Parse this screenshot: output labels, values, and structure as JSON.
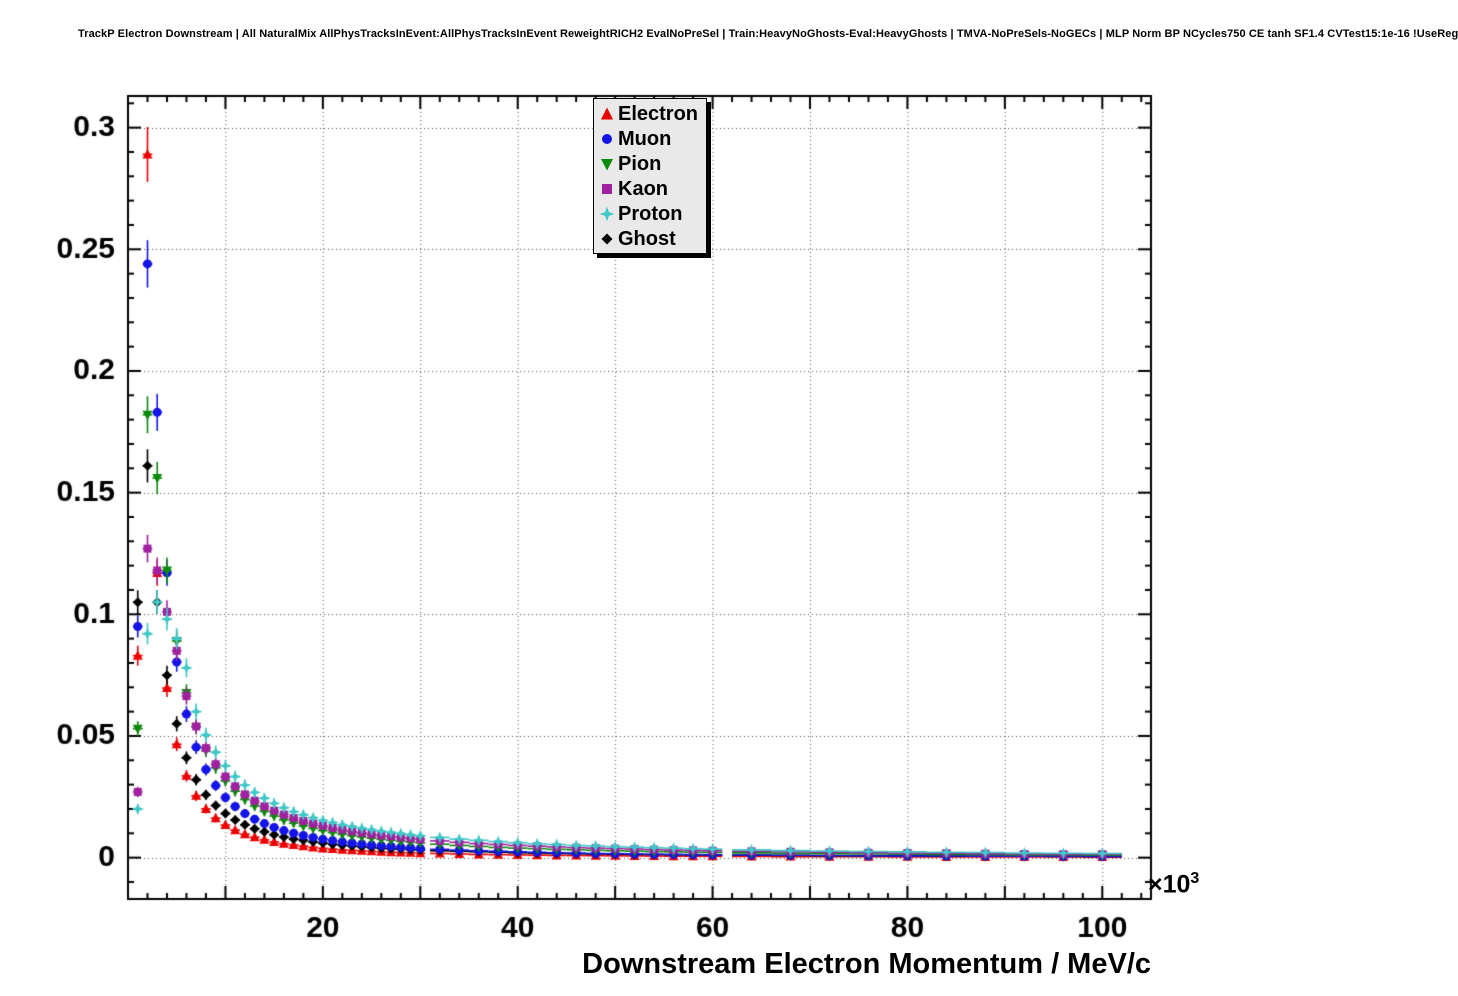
{
  "chart_data": {
    "type": "scatter",
    "title": "TrackP Electron Downstream | All NaturalMix AllPhysTracksInEvent:AllPhysTracksInEvent ReweightRICH2 EvalNoPreSel | Train:HeavyNoGhosts-Eval:HeavyGhosts | TMVA-NoPreSels-NoGECs | MLP Norm BP NCycles750 CE tanh SF1.4 CVTest15:1e-16 !UseReg",
    "xlabel": "Downstream Electron Momentum / MeV/c",
    "ylabel": "",
    "x_multiplier": "×10",
    "x_multiplier_exp": "3",
    "xlim": [
      0,
      105
    ],
    "ylim": [
      -0.017,
      0.313
    ],
    "xticks": {
      "major_step": 10,
      "minor_step": 2,
      "label_values": [
        20,
        40,
        60,
        80,
        100
      ],
      "labels": [
        "20",
        "40",
        "60",
        "80",
        "100"
      ]
    },
    "yticks": {
      "major_step": 0.05,
      "minor_step": 0.01,
      "label_values": [
        0,
        0.05,
        0.1,
        0.15,
        0.2,
        0.25,
        0.3
      ],
      "labels": [
        "0",
        "0.05",
        "0.1",
        "0.15",
        "0.2",
        "0.25",
        "0.3"
      ]
    },
    "grid": {
      "on": true,
      "style": "dotted"
    },
    "legend_position": "top-center",
    "error_model": {
      "fraction": 0.035,
      "floor": 0.0012
    },
    "x": [
      1,
      2,
      3,
      4,
      5,
      6,
      7,
      8,
      9,
      10,
      11,
      12,
      13,
      14,
      15,
      16,
      17,
      18,
      19,
      20,
      21,
      22,
      23,
      24,
      25,
      26,
      27,
      28,
      29,
      30,
      32,
      34,
      36,
      38,
      40,
      42,
      44,
      46,
      48,
      50,
      52,
      54,
      56,
      58,
      60,
      64,
      68,
      72,
      76,
      80,
      84,
      88,
      92,
      96,
      100
    ],
    "series": [
      {
        "name": "Electron",
        "color": "#ee0000",
        "marker": "triangle-up",
        "values": [
          0.083,
          0.289,
          0.117,
          0.0697,
          0.0466,
          0.0336,
          0.0254,
          0.02,
          0.0162,
          0.0134,
          0.0113,
          0.0096,
          0.0084,
          0.0073,
          0.0064,
          0.0057,
          0.0052,
          0.0047,
          0.0042,
          0.0038,
          0.0035,
          0.0032,
          0.003,
          0.0028,
          0.0026,
          0.0024,
          0.0022,
          0.0021,
          0.002,
          0.0018,
          0.0017,
          0.0015,
          0.0013,
          0.0012,
          0.0011,
          0.001,
          0.0009,
          0.00086,
          0.0008,
          0.00074,
          0.00069,
          0.00064,
          0.0006,
          0.00057,
          0.00053,
          0.00048,
          0.00043,
          0.00039,
          0.00035,
          0.00032,
          0.00029,
          0.00027,
          0.00025,
          0.00023,
          0.00021
        ]
      },
      {
        "name": "Muon",
        "color": "#1414e8",
        "marker": "circle",
        "values": [
          0.095,
          0.244,
          0.183,
          0.117,
          0.0804,
          0.059,
          0.0454,
          0.0362,
          0.0296,
          0.0247,
          0.021,
          0.0181,
          0.0158,
          0.014,
          0.0124,
          0.0111,
          0.01,
          0.0091,
          0.0083,
          0.0076,
          0.007,
          0.0065,
          0.006,
          0.0056,
          0.0052,
          0.0049,
          0.0046,
          0.0043,
          0.0041,
          0.0038,
          0.0034,
          0.0031,
          0.0028,
          0.0026,
          0.0024,
          0.0022,
          0.002,
          0.0019,
          0.0017,
          0.0016,
          0.0015,
          0.0014,
          0.00133,
          0.00125,
          0.00118,
          0.00106,
          0.00096,
          0.00087,
          0.00079,
          0.00073,
          0.00067,
          0.00062,
          0.00058,
          0.00054,
          0.0005
        ]
      },
      {
        "name": "Pion",
        "color": "#0c8a0c",
        "marker": "triangle-down",
        "values": [
          0.053,
          0.182,
          0.156,
          0.118,
          0.089,
          0.0677,
          0.0537,
          0.044,
          0.0369,
          0.0315,
          0.0273,
          0.0239,
          0.0212,
          0.019,
          0.0171,
          0.0155,
          0.0142,
          0.013,
          0.012,
          0.0111,
          0.0103,
          0.0096,
          0.009,
          0.0085,
          0.008,
          0.0075,
          0.0071,
          0.0067,
          0.0064,
          0.0061,
          0.0055,
          0.005,
          0.0046,
          0.0042,
          0.0039,
          0.0037,
          0.0034,
          0.0032,
          0.003,
          0.0028,
          0.00265,
          0.00251,
          0.00237,
          0.00225,
          0.00214,
          0.00194,
          0.00177,
          0.00163,
          0.0015,
          0.00139,
          0.00129,
          0.00121,
          0.00113,
          0.00106,
          0.001
        ]
      },
      {
        "name": "Kaon",
        "color": "#a020a0",
        "marker": "square",
        "values": [
          0.027,
          0.127,
          0.118,
          0.101,
          0.085,
          0.0664,
          0.0539,
          0.045,
          0.0384,
          0.0333,
          0.0293,
          0.026,
          0.0234,
          0.0211,
          0.0193,
          0.0177,
          0.0163,
          0.0151,
          0.014,
          0.0131,
          0.0122,
          0.0115,
          0.0108,
          0.0102,
          0.0096,
          0.0091,
          0.0087,
          0.0083,
          0.0079,
          0.0075,
          0.0069,
          0.0063,
          0.0058,
          0.0054,
          0.005,
          0.0047,
          0.0044,
          0.0041,
          0.0039,
          0.0037,
          0.0035,
          0.0033,
          0.0031,
          0.003,
          0.0028,
          0.0026,
          0.0024,
          0.0022,
          0.002,
          0.0019,
          0.0018,
          0.0016,
          0.0015,
          0.0014,
          0.0014
        ]
      },
      {
        "name": "Proton",
        "color": "#3fc8c8",
        "marker": "star",
        "values": [
          0.02,
          0.092,
          0.105,
          0.098,
          0.09,
          0.078,
          0.06,
          0.0504,
          0.0433,
          0.0377,
          0.0333,
          0.0298,
          0.0268,
          0.0244,
          0.0223,
          0.0205,
          0.0189,
          0.0176,
          0.0164,
          0.0153,
          0.0144,
          0.0135,
          0.0128,
          0.0121,
          0.0115,
          0.0109,
          0.0104,
          0.0099,
          0.0094,
          0.009,
          0.0083,
          0.0076,
          0.0071,
          0.0066,
          0.0061,
          0.0057,
          0.0054,
          0.005,
          0.0048,
          0.0045,
          0.0043,
          0.0041,
          0.0039,
          0.0037,
          0.0035,
          0.0032,
          0.0029,
          0.0027,
          0.0025,
          0.0024,
          0.0022,
          0.0021,
          0.0019,
          0.0018,
          0.0017
        ]
      },
      {
        "name": "Ghost",
        "color": "#000000",
        "marker": "diamond",
        "values": [
          0.105,
          0.161,
          0.105,
          0.075,
          0.055,
          0.041,
          0.032,
          0.0258,
          0.0214,
          0.0181,
          0.0155,
          0.0135,
          0.0119,
          0.0106,
          0.0094,
          0.0085,
          0.0077,
          0.0071,
          0.0065,
          0.006,
          0.0055,
          0.0051,
          0.0048,
          0.0045,
          0.0042,
          0.0039,
          0.0037,
          0.0035,
          0.0033,
          0.0031,
          0.0028,
          0.0026,
          0.0024,
          0.0022,
          0.002,
          0.00185,
          0.00172,
          0.0016,
          0.0015,
          0.00141,
          0.00132,
          0.00125,
          0.00118,
          0.00112,
          0.00106,
          0.00096,
          0.00087,
          0.0008,
          0.00073,
          0.00068,
          0.00063,
          0.00059,
          0.00055,
          0.00051,
          0.00048
        ]
      }
    ]
  }
}
